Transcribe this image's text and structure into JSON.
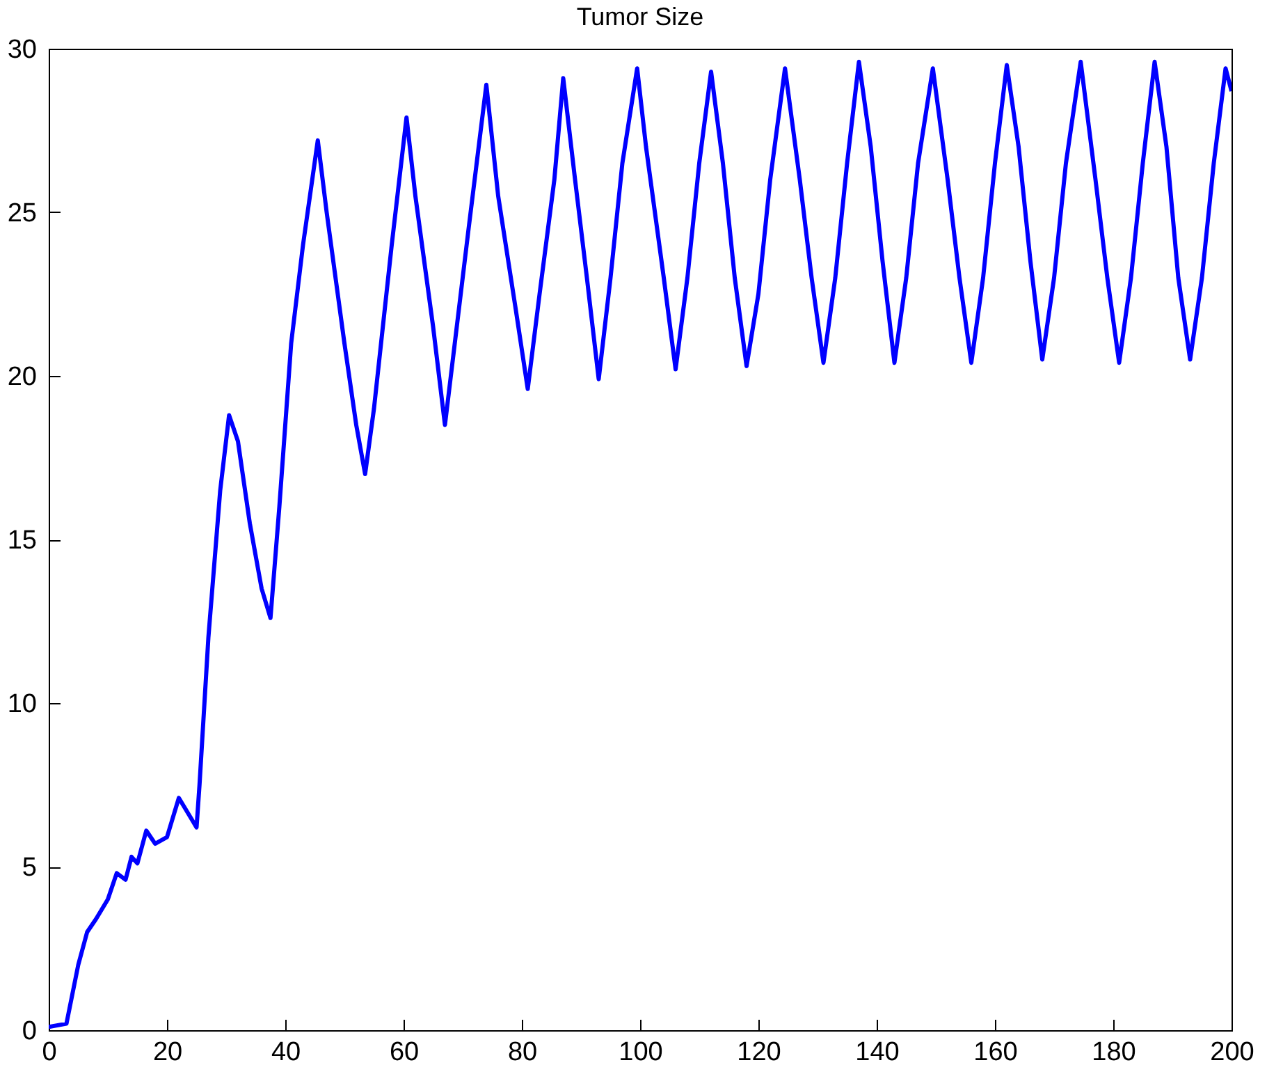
{
  "chart_data": {
    "type": "line",
    "title": "Tumor Size",
    "xlim": [
      0,
      200
    ],
    "ylim": [
      0,
      30
    ],
    "xticks": [
      0,
      20,
      40,
      60,
      80,
      100,
      120,
      140,
      160,
      180,
      200
    ],
    "yticks": [
      0,
      5,
      10,
      15,
      20,
      25,
      30
    ],
    "grid": false,
    "legend": false,
    "marker": "none",
    "line_style": "solid",
    "x": [
      0,
      3,
      5,
      6.5,
      8,
      10,
      11.5,
      13,
      14,
      15,
      16.5,
      18,
      20,
      22,
      24,
      25,
      25.5,
      27,
      29,
      30.5,
      32,
      34,
      36,
      37.5,
      39,
      41,
      43,
      45.5,
      47,
      50,
      52,
      53.5,
      55,
      58,
      60.5,
      62,
      65,
      67,
      68,
      71,
      74,
      76,
      79,
      81,
      83,
      85.5,
      87,
      89,
      91,
      93,
      95,
      97,
      99.5,
      101,
      104,
      106,
      108,
      110,
      112,
      114,
      116,
      118,
      120,
      122,
      124.5,
      127,
      129,
      131,
      133,
      135,
      137,
      139,
      141,
      143,
      145,
      147,
      149.5,
      152,
      154,
      156,
      158,
      160,
      162,
      164,
      166,
      168,
      170,
      172,
      174.5,
      177,
      179,
      181,
      183,
      185,
      187,
      189,
      191,
      193,
      195,
      197,
      199,
      200
    ],
    "series": [
      {
        "color": "#0000ff",
        "values": [
          0.1,
          0.2,
          2,
          3,
          3.4,
          4,
          4.8,
          4.6,
          5.3,
          5.1,
          6.1,
          5.7,
          5.9,
          7.1,
          6.5,
          6.2,
          7.5,
          12,
          16.5,
          18.8,
          18,
          15.5,
          13.5,
          12.6,
          16,
          21,
          24,
          27.2,
          25,
          21,
          18.5,
          17,
          19,
          24,
          27.9,
          25.5,
          21.5,
          18.5,
          20,
          24.5,
          28.9,
          25.5,
          22,
          19.6,
          22.5,
          26,
          29.1,
          26,
          23,
          19.9,
          23,
          26.5,
          29.4,
          27,
          23,
          20.2,
          23,
          26.5,
          29.3,
          26.5,
          23,
          20.3,
          22.5,
          26,
          29.4,
          26,
          23,
          20.4,
          23,
          26.5,
          29.6,
          27,
          23.5,
          20.4,
          23,
          26.5,
          29.4,
          26,
          23,
          20.4,
          23,
          26.5,
          29.5,
          27,
          23.5,
          20.5,
          23,
          26.5,
          29.6,
          26,
          23,
          20.4,
          23,
          26.5,
          29.6,
          27,
          23,
          20.5,
          23,
          26.5,
          29.4,
          28.7
        ]
      }
    ]
  }
}
